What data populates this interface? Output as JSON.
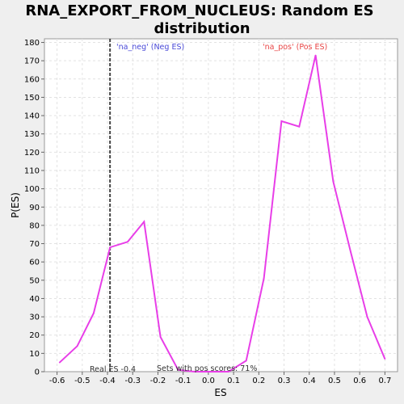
{
  "chart_data": {
    "type": "line",
    "title_line1": "RNA_EXPORT_FROM_NUCLEUS: Random ES",
    "title_line2": "distribution",
    "xlabel": "ES",
    "ylabel": "P(ES)",
    "xlim": [
      -0.65,
      0.75
    ],
    "ylim": [
      0,
      182
    ],
    "xticks": [
      "-0.6",
      "-0.5",
      "-0.4",
      "-0.3",
      "-0.2",
      "-0.1",
      "0.0",
      "0.1",
      "0.2",
      "0.3",
      "0.4",
      "0.5",
      "0.6",
      "0.7"
    ],
    "xtick_values": [
      -0.6,
      -0.5,
      -0.4,
      -0.3,
      -0.2,
      -0.1,
      0.0,
      0.1,
      0.2,
      0.3,
      0.4,
      0.5,
      0.6,
      0.7
    ],
    "yticks": [
      0,
      10,
      20,
      30,
      40,
      50,
      60,
      70,
      80,
      90,
      100,
      110,
      120,
      130,
      140,
      150,
      160,
      170,
      180
    ],
    "grid": true,
    "series": [
      {
        "color": "#e83ee8",
        "x": [
          -0.59,
          -0.52,
          -0.455,
          -0.39,
          -0.32,
          -0.255,
          -0.19,
          -0.12,
          -0.055,
          0.01,
          0.08,
          0.15,
          0.22,
          0.29,
          0.36,
          0.425,
          0.495,
          0.565,
          0.63,
          0.7
        ],
        "y": [
          5,
          14,
          32,
          68,
          71,
          82,
          19,
          1,
          0,
          0,
          0,
          6,
          51,
          137,
          134,
          173,
          104,
          65,
          30,
          7
        ]
      }
    ],
    "real_es": {
      "x": -0.39,
      "label": "Real ES -0.4",
      "color": "#444444"
    },
    "annotations": {
      "neg_label": "'na_neg' (Neg ES)",
      "neg_color": "#4a4ad8",
      "pos_label": "'na_pos' (Pos ES)",
      "pos_color": "#e84545",
      "sets_text": "Sets with pos scores: 71%"
    }
  }
}
